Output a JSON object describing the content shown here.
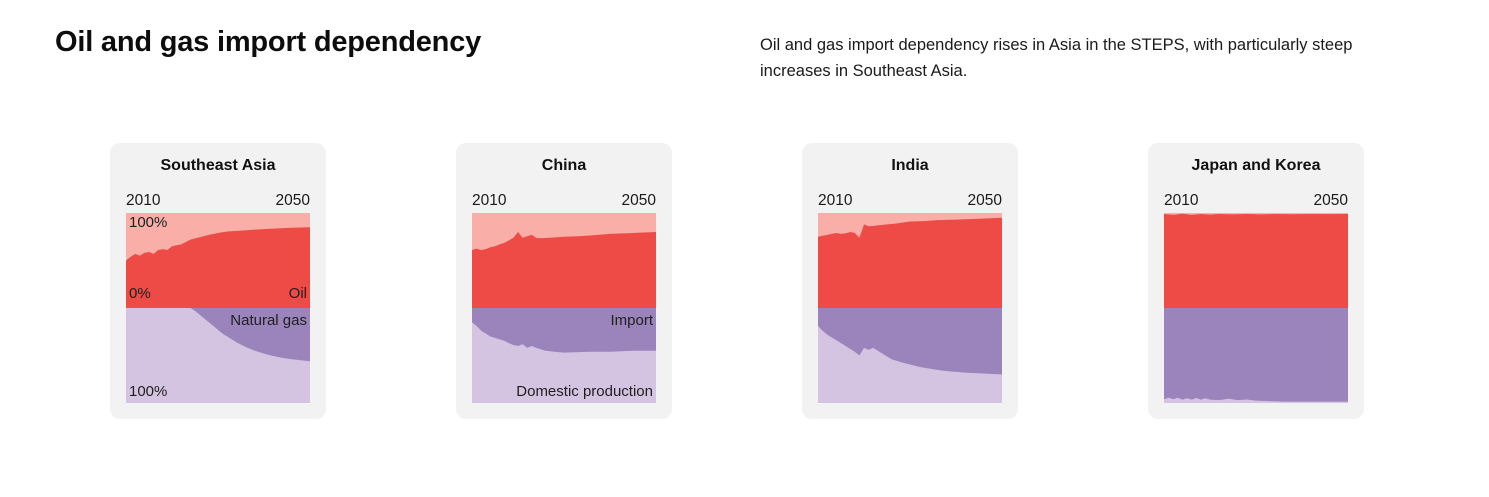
{
  "header": {
    "title": "Oil and gas import dependency",
    "subtitle": "Oil and gas import dependency rises in Asia in the STEPS, with particularly steep increases in Southeast Asia."
  },
  "colors": {
    "oil_import": "#ee4b46",
    "oil_domestic": "#f9aea8",
    "gas_import": "#9b84bb",
    "gas_domestic": "#d4c3e1",
    "card_background": "#f2f2f2",
    "text": "#1a1a1a"
  },
  "panels": [
    {
      "title": "Southeast Asia",
      "x_start": "2010",
      "x_end": "2050",
      "labels": [
        {
          "text": "100%",
          "pos": "oil-top-left"
        },
        {
          "text": "0%",
          "pos": "oil-bottom-left"
        },
        {
          "text": "Oil",
          "pos": "oil-bottom-right"
        },
        {
          "text": "Natural gas",
          "pos": "gas-top-right"
        },
        {
          "text": "100%",
          "pos": "gas-bottom-left"
        }
      ]
    },
    {
      "title": "China",
      "x_start": "2010",
      "x_end": "2050",
      "labels": [
        {
          "text": "Import",
          "pos": "gas-top-right"
        },
        {
          "text": "Domestic production",
          "pos": "gas-bottom-right"
        }
      ]
    },
    {
      "title": "India",
      "x_start": "2010",
      "x_end": "2050",
      "labels": []
    },
    {
      "title": "Japan and Korea",
      "x_start": "2010",
      "x_end": "2050",
      "labels": []
    }
  ],
  "chart_data": [
    {
      "type": "area",
      "title": "Southeast Asia",
      "layout": "mirrored: oil import share fills upward from the 0% midline, natural gas import share fills downward; remainder of each band is domestic production",
      "xlim": [
        2010,
        2050
      ],
      "ylim": [
        0,
        100
      ],
      "y_ticks_shown": [
        "100%",
        "0%",
        "100%"
      ],
      "series": [
        {
          "name": "Oil import share (%)",
          "color_role": "oil_import",
          "points": [
            [
              2010,
              50
            ],
            [
              2011,
              54
            ],
            [
              2012,
              57
            ],
            [
              2013,
              55
            ],
            [
              2014,
              58
            ],
            [
              2015,
              59
            ],
            [
              2016,
              57
            ],
            [
              2017,
              61
            ],
            [
              2018,
              62
            ],
            [
              2019,
              61
            ],
            [
              2020,
              65
            ],
            [
              2021,
              66
            ],
            [
              2022,
              67
            ],
            [
              2023,
              69.5
            ],
            [
              2024,
              72
            ],
            [
              2026,
              74.5
            ],
            [
              2028,
              77
            ],
            [
              2030,
              79
            ],
            [
              2032,
              80.5
            ],
            [
              2035,
              81.5
            ],
            [
              2038,
              82.5
            ],
            [
              2042,
              83.5
            ],
            [
              2046,
              84.5
            ],
            [
              2050,
              85
            ]
          ]
        },
        {
          "name": "Natural gas import share (%)",
          "color_role": "gas_import",
          "points": [
            [
              2010,
              0
            ],
            [
              2024,
              0
            ],
            [
              2025,
              3
            ],
            [
              2026,
              7
            ],
            [
              2027,
              11
            ],
            [
              2028,
              15
            ],
            [
              2029,
              19
            ],
            [
              2030,
              23
            ],
            [
              2031,
              27
            ],
            [
              2032,
              30
            ],
            [
              2033,
              33
            ],
            [
              2034,
              36
            ],
            [
              2035,
              38.5
            ],
            [
              2036,
              41
            ],
            [
              2037,
              43
            ],
            [
              2038,
              45
            ],
            [
              2039,
              46.5
            ],
            [
              2040,
              48
            ],
            [
              2042,
              50.5
            ],
            [
              2044,
              52.5
            ],
            [
              2046,
              54
            ],
            [
              2048,
              55
            ],
            [
              2050,
              56
            ]
          ]
        }
      ]
    },
    {
      "type": "area",
      "title": "China",
      "layout": "mirrored: oil import share fills upward from the 0% midline, natural gas import share fills downward; remainder of each band is domestic production",
      "xlim": [
        2010,
        2050
      ],
      "ylim": [
        0,
        100
      ],
      "series": [
        {
          "name": "Oil import share (%)",
          "color_role": "oil_import",
          "points": [
            [
              2010,
              61
            ],
            [
              2011,
              62.5
            ],
            [
              2012,
              61
            ],
            [
              2013,
              62
            ],
            [
              2014,
              64
            ],
            [
              2015,
              65
            ],
            [
              2016,
              67
            ],
            [
              2017,
              68.5
            ],
            [
              2018,
              71
            ],
            [
              2019,
              74
            ],
            [
              2020,
              80
            ],
            [
              2021,
              74
            ],
            [
              2022,
              75.5
            ],
            [
              2023,
              77
            ],
            [
              2024,
              73.5
            ],
            [
              2025,
              73.5
            ],
            [
              2027,
              74
            ],
            [
              2030,
              75
            ],
            [
              2033,
              75.5
            ],
            [
              2036,
              76.5
            ],
            [
              2040,
              78
            ],
            [
              2045,
              79
            ],
            [
              2050,
              80
            ]
          ]
        },
        {
          "name": "Natural gas import share (%)",
          "color_role": "gas_import",
          "points": [
            [
              2010,
              15
            ],
            [
              2011,
              19
            ],
            [
              2012,
              24
            ],
            [
              2013,
              27
            ],
            [
              2014,
              30
            ],
            [
              2015,
              31.5
            ],
            [
              2016,
              33
            ],
            [
              2017,
              34.5
            ],
            [
              2018,
              37
            ],
            [
              2019,
              39
            ],
            [
              2020,
              40
            ],
            [
              2021,
              38
            ],
            [
              2022,
              42
            ],
            [
              2023,
              40
            ],
            [
              2024,
              42
            ],
            [
              2025,
              43.5
            ],
            [
              2026,
              45
            ],
            [
              2028,
              46
            ],
            [
              2030,
              47
            ],
            [
              2033,
              46.5
            ],
            [
              2036,
              46
            ],
            [
              2040,
              46
            ],
            [
              2045,
              45
            ],
            [
              2050,
              45
            ]
          ]
        }
      ]
    },
    {
      "type": "area",
      "title": "India",
      "layout": "mirrored: oil import share fills upward from the 0% midline, natural gas import share fills downward; remainder of each band is domestic production",
      "xlim": [
        2010,
        2050
      ],
      "ylim": [
        0,
        100
      ],
      "series": [
        {
          "name": "Oil import share (%)",
          "color_role": "oil_import",
          "points": [
            [
              2010,
              75
            ],
            [
              2011,
              76
            ],
            [
              2012,
              77
            ],
            [
              2013,
              78
            ],
            [
              2014,
              79
            ],
            [
              2015,
              78
            ],
            [
              2016,
              78.5
            ],
            [
              2017,
              80
            ],
            [
              2018,
              79
            ],
            [
              2019,
              74
            ],
            [
              2020,
              88
            ],
            [
              2021,
              86
            ],
            [
              2022,
              86.5
            ],
            [
              2023,
              87
            ],
            [
              2025,
              88
            ],
            [
              2027,
              89
            ],
            [
              2030,
              91
            ],
            [
              2033,
              91.5
            ],
            [
              2036,
              92.5
            ],
            [
              2040,
              93
            ],
            [
              2045,
              94
            ],
            [
              2050,
              95
            ]
          ]
        },
        {
          "name": "Natural gas import share (%)",
          "color_role": "gas_import",
          "points": [
            [
              2010,
              19
            ],
            [
              2011,
              24
            ],
            [
              2012,
              28
            ],
            [
              2013,
              31
            ],
            [
              2014,
              34
            ],
            [
              2015,
              37
            ],
            [
              2016,
              40
            ],
            [
              2017,
              43
            ],
            [
              2018,
              46
            ],
            [
              2019,
              50
            ],
            [
              2020,
              42
            ],
            [
              2021,
              44
            ],
            [
              2022,
              42
            ],
            [
              2023,
              45
            ],
            [
              2024,
              48
            ],
            [
              2025,
              51
            ],
            [
              2026,
              54
            ],
            [
              2028,
              57
            ],
            [
              2030,
              59.5
            ],
            [
              2032,
              62
            ],
            [
              2035,
              64.5
            ],
            [
              2038,
              66.5
            ],
            [
              2042,
              68
            ],
            [
              2046,
              69
            ],
            [
              2050,
              70
            ]
          ]
        }
      ]
    },
    {
      "type": "area",
      "title": "Japan and Korea",
      "layout": "mirrored: oil import share fills upward from the 0% midline, natural gas import share fills downward; remainder of each band is domestic production",
      "xlim": [
        2010,
        2050
      ],
      "ylim": [
        0,
        100
      ],
      "series": [
        {
          "name": "Oil import share (%)",
          "color_role": "oil_import",
          "points": [
            [
              2010,
              99
            ],
            [
              2012,
              98
            ],
            [
              2014,
              99.2
            ],
            [
              2016,
              98
            ],
            [
              2018,
              99
            ],
            [
              2020,
              98.3
            ],
            [
              2022,
              99
            ],
            [
              2025,
              98.5
            ],
            [
              2028,
              99
            ],
            [
              2031,
              98.5
            ],
            [
              2034,
              99
            ],
            [
              2038,
              98.7
            ],
            [
              2042,
              99
            ],
            [
              2046,
              98.8
            ],
            [
              2050,
              99
            ]
          ]
        },
        {
          "name": "Natural gas import share (%)",
          "color_role": "gas_import",
          "points": [
            [
              2010,
              96
            ],
            [
              2011,
              94.5
            ],
            [
              2012,
              96
            ],
            [
              2013,
              94.5
            ],
            [
              2014,
              96.5
            ],
            [
              2015,
              95
            ],
            [
              2016,
              96.5
            ],
            [
              2017,
              94.8
            ],
            [
              2018,
              96.5
            ],
            [
              2019,
              95
            ],
            [
              2020,
              96.5
            ],
            [
              2022,
              97
            ],
            [
              2024,
              95.5
            ],
            [
              2026,
              97
            ],
            [
              2028,
              96.3
            ],
            [
              2030,
              97.5
            ],
            [
              2033,
              98
            ],
            [
              2036,
              98.5
            ],
            [
              2040,
              98.5
            ],
            [
              2045,
              98.5
            ],
            [
              2050,
              98.5
            ]
          ]
        }
      ]
    }
  ]
}
